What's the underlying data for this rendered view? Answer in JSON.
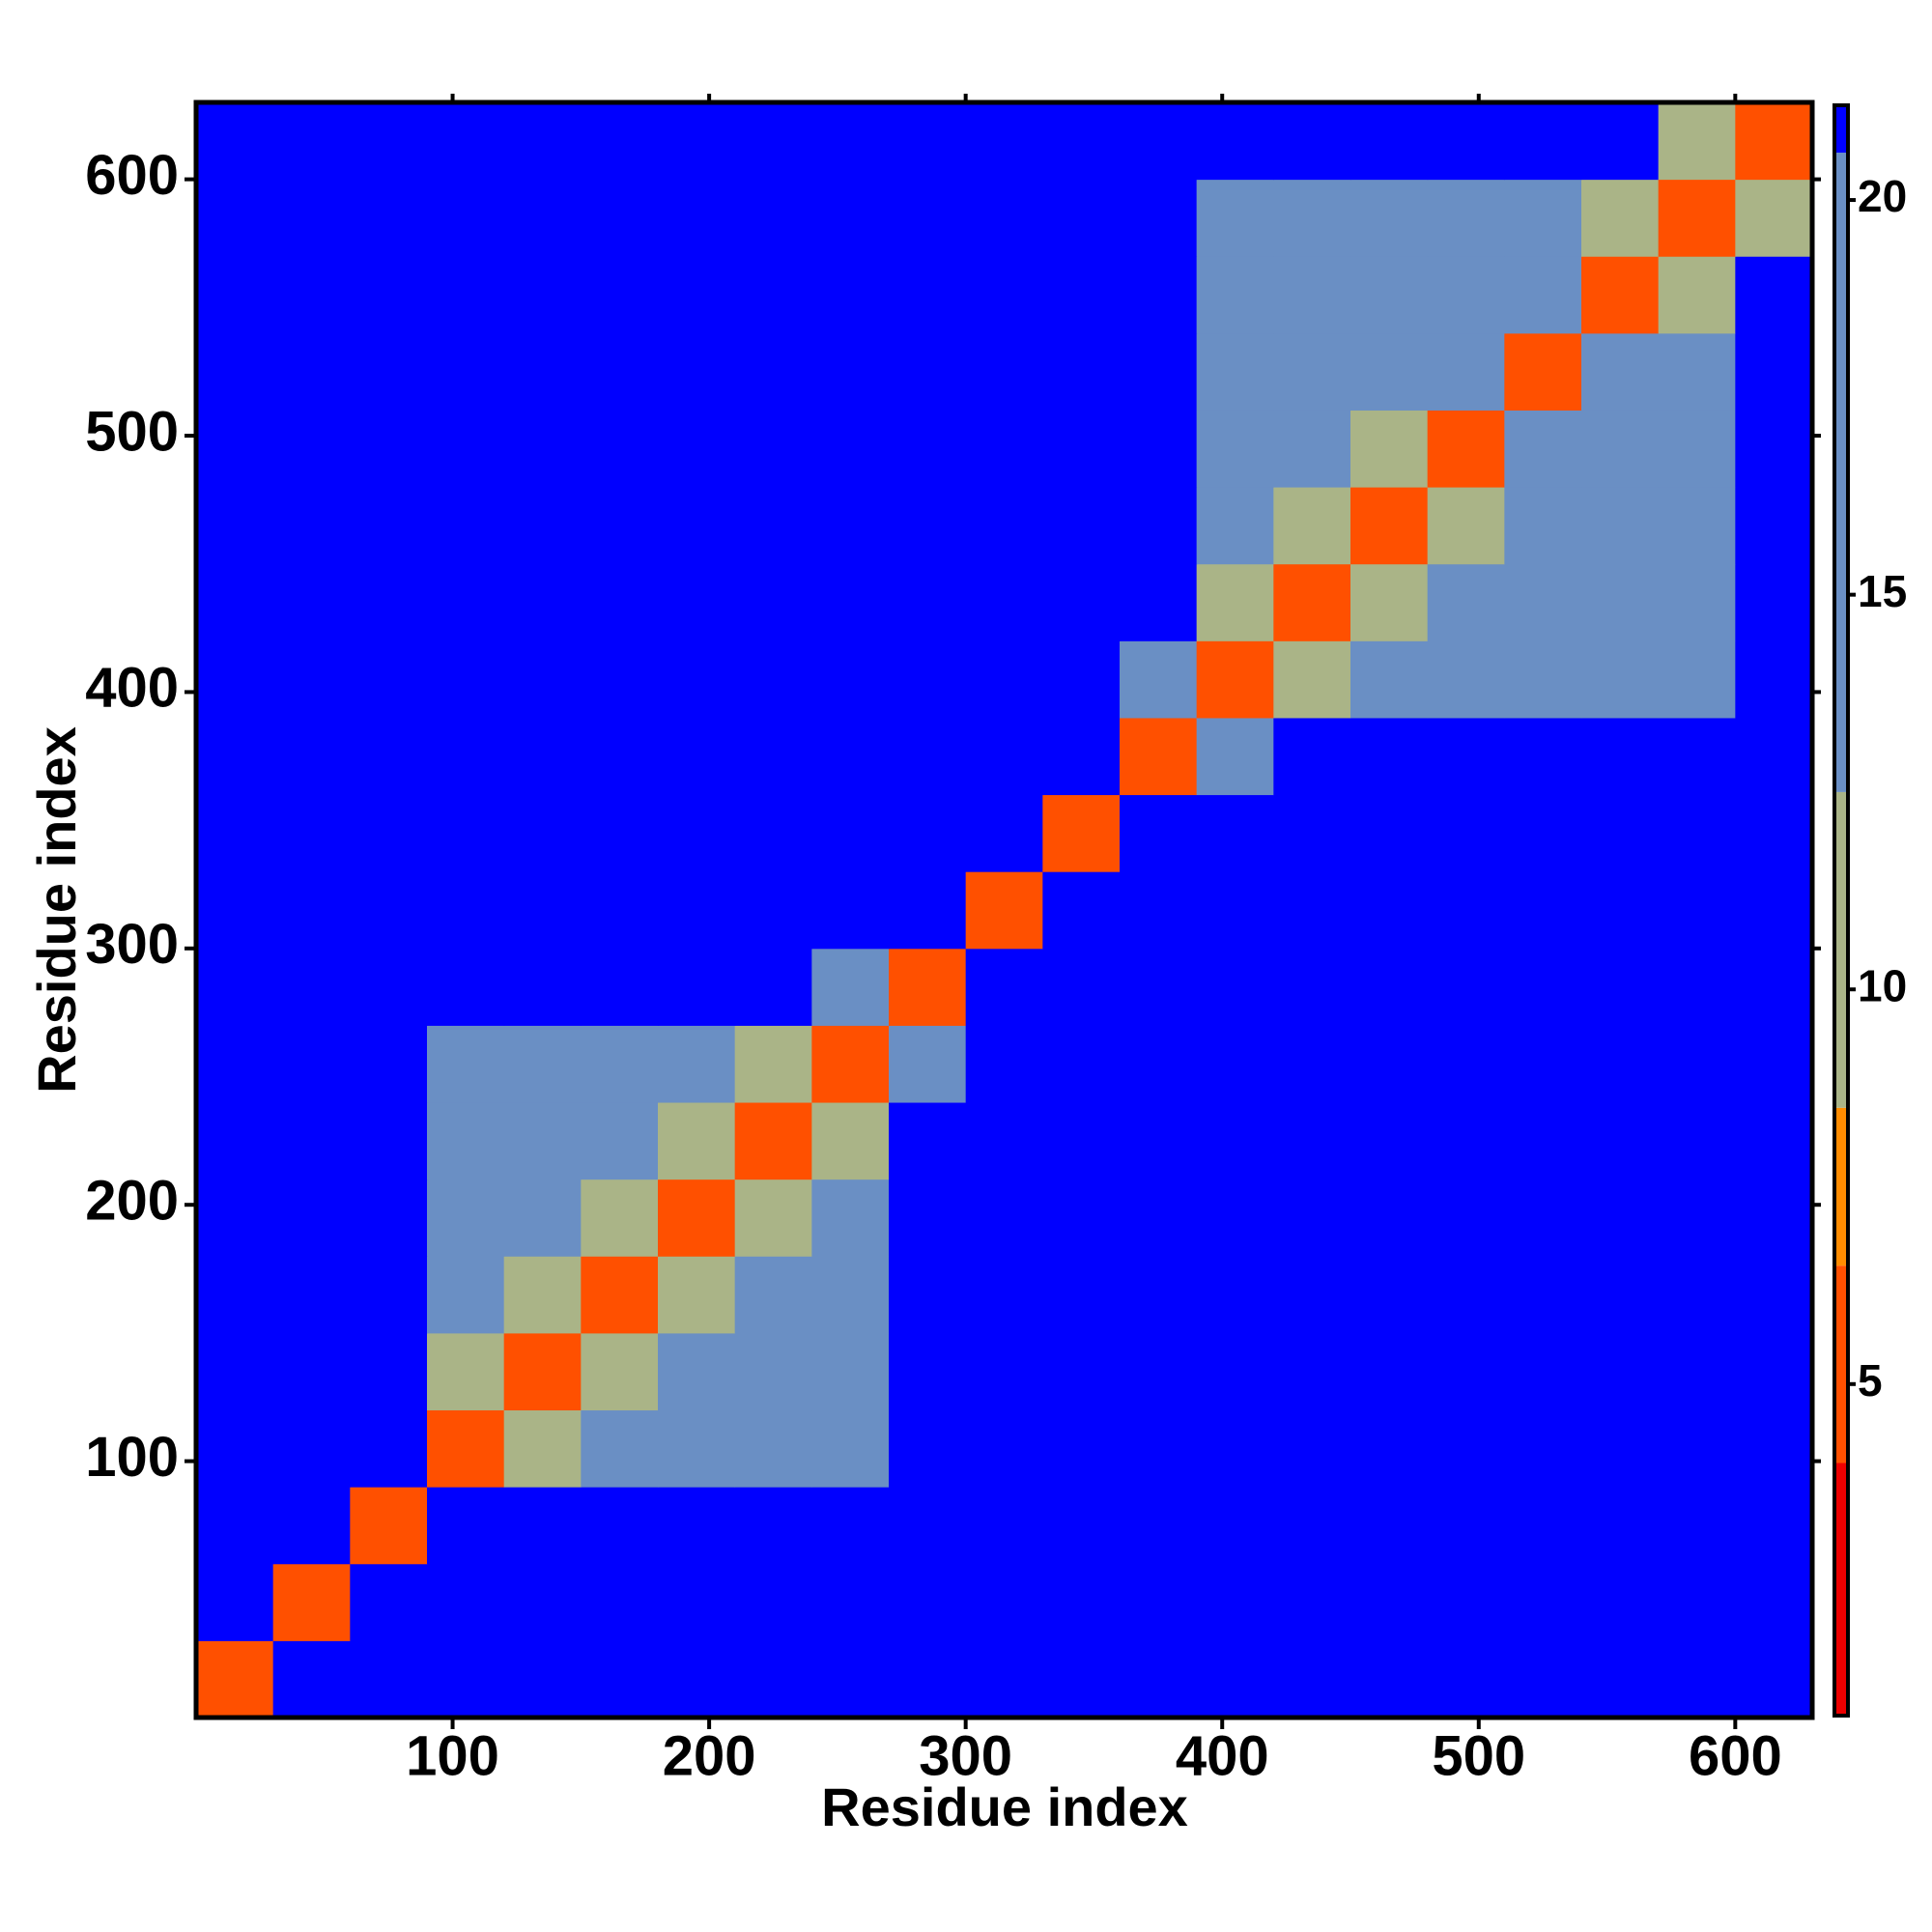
{
  "chart_data": {
    "type": "heatmap",
    "x_label": "Residue index",
    "y_label": "Residue index",
    "x_bins": [
      0,
      30,
      60,
      90,
      120,
      150,
      180,
      210,
      240,
      270,
      300,
      330,
      360,
      390,
      420,
      450,
      480,
      510,
      540,
      570,
      600,
      630
    ],
    "y_bins": [
      0,
      30,
      60,
      90,
      120,
      150,
      180,
      210,
      240,
      270,
      300,
      330,
      360,
      390,
      420,
      450,
      480,
      510,
      540,
      570,
      600,
      630
    ],
    "values": [
      [
        5,
        21,
        21,
        21,
        21,
        21,
        21,
        21,
        21,
        21,
        21,
        21,
        21,
        21,
        21,
        21,
        21,
        21,
        21,
        21,
        21
      ],
      [
        21,
        5,
        21,
        21,
        21,
        21,
        21,
        21,
        21,
        21,
        21,
        21,
        21,
        21,
        21,
        21,
        21,
        21,
        21,
        21,
        21
      ],
      [
        21,
        21,
        5,
        21,
        21,
        21,
        21,
        21,
        21,
        21,
        21,
        21,
        21,
        21,
        21,
        21,
        21,
        21,
        21,
        21,
        21
      ],
      [
        21,
        21,
        21,
        5,
        12,
        16,
        18,
        18,
        19,
        21,
        21,
        21,
        21,
        21,
        21,
        21,
        21,
        21,
        21,
        21,
        21
      ],
      [
        21,
        21,
        21,
        12,
        5,
        12,
        15,
        15,
        16,
        21,
        21,
        21,
        21,
        21,
        21,
        21,
        21,
        21,
        21,
        21,
        21
      ],
      [
        21,
        21,
        21,
        16,
        12,
        5,
        12,
        14,
        15,
        21,
        21,
        21,
        21,
        21,
        21,
        21,
        21,
        21,
        21,
        21,
        21
      ],
      [
        21,
        21,
        21,
        18,
        15,
        12,
        5,
        12,
        15,
        21,
        21,
        21,
        21,
        21,
        21,
        21,
        21,
        21,
        21,
        21,
        21
      ],
      [
        21,
        21,
        21,
        18,
        15,
        14,
        12,
        5,
        12,
        21,
        21,
        21,
        21,
        21,
        21,
        21,
        21,
        21,
        21,
        21,
        21
      ],
      [
        21,
        21,
        21,
        19,
        16,
        15,
        15,
        12,
        5,
        15,
        21,
        21,
        21,
        21,
        21,
        21,
        21,
        21,
        21,
        21,
        21
      ],
      [
        21,
        21,
        21,
        21,
        21,
        21,
        21,
        21,
        15,
        5,
        21,
        21,
        21,
        21,
        21,
        21,
        21,
        21,
        21,
        21,
        21
      ],
      [
        21,
        21,
        21,
        21,
        21,
        21,
        21,
        21,
        21,
        21,
        5,
        21,
        21,
        21,
        21,
        21,
        21,
        21,
        21,
        21,
        21
      ],
      [
        21,
        21,
        21,
        21,
        21,
        21,
        21,
        21,
        21,
        21,
        21,
        5,
        21,
        21,
        21,
        21,
        21,
        21,
        21,
        21,
        21
      ],
      [
        21,
        21,
        21,
        21,
        21,
        21,
        21,
        21,
        21,
        21,
        21,
        21,
        5,
        14,
        21,
        21,
        21,
        21,
        21,
        21,
        21
      ],
      [
        21,
        21,
        21,
        21,
        21,
        21,
        21,
        21,
        21,
        21,
        21,
        21,
        14,
        5,
        12,
        15,
        16,
        19,
        14,
        15,
        21
      ],
      [
        21,
        21,
        21,
        21,
        21,
        21,
        21,
        21,
        21,
        21,
        21,
        21,
        21,
        12,
        5,
        12,
        15,
        19,
        14,
        15,
        21
      ],
      [
        21,
        21,
        21,
        21,
        21,
        21,
        21,
        21,
        21,
        21,
        21,
        21,
        21,
        15,
        12,
        5,
        12,
        19,
        15,
        17,
        21
      ],
      [
        21,
        21,
        21,
        21,
        21,
        21,
        21,
        21,
        21,
        21,
        21,
        21,
        21,
        16,
        15,
        12,
        5,
        14,
        16,
        18,
        21
      ],
      [
        21,
        21,
        21,
        21,
        21,
        21,
        21,
        21,
        21,
        21,
        21,
        21,
        21,
        19,
        19,
        19,
        14,
        5,
        13,
        17,
        21
      ],
      [
        21,
        21,
        21,
        21,
        21,
        21,
        21,
        21,
        21,
        21,
        21,
        21,
        21,
        14,
        14,
        15,
        16,
        13,
        5,
        10,
        21
      ],
      [
        21,
        21,
        21,
        21,
        21,
        21,
        21,
        21,
        21,
        21,
        21,
        21,
        21,
        15,
        15,
        17,
        18,
        17,
        10,
        5,
        12
      ],
      [
        21,
        21,
        21,
        21,
        21,
        21,
        21,
        21,
        21,
        21,
        21,
        21,
        21,
        21,
        21,
        21,
        21,
        21,
        21,
        12,
        5
      ]
    ],
    "xlim": [
      0,
      630
    ],
    "ylim": [
      0,
      630
    ],
    "xticks": [
      100,
      200,
      300,
      400,
      500,
      600
    ],
    "yticks": [
      100,
      200,
      300,
      400,
      500,
      600
    ],
    "clim": [
      0.8,
      21.2
    ],
    "cticks": [
      5,
      10,
      15,
      20
    ],
    "colorscale": [
      {
        "value": 0.8,
        "color": "#ee0000"
      },
      {
        "value": 4,
        "color": "#ff5000"
      },
      {
        "value": 6.5,
        "color": "#ff8c00"
      },
      {
        "value": 8.5,
        "color": "#aab487"
      },
      {
        "value": 12.5,
        "color": "#6a8fc4"
      },
      {
        "value": 20.6,
        "color": "#0000ff"
      }
    ]
  }
}
